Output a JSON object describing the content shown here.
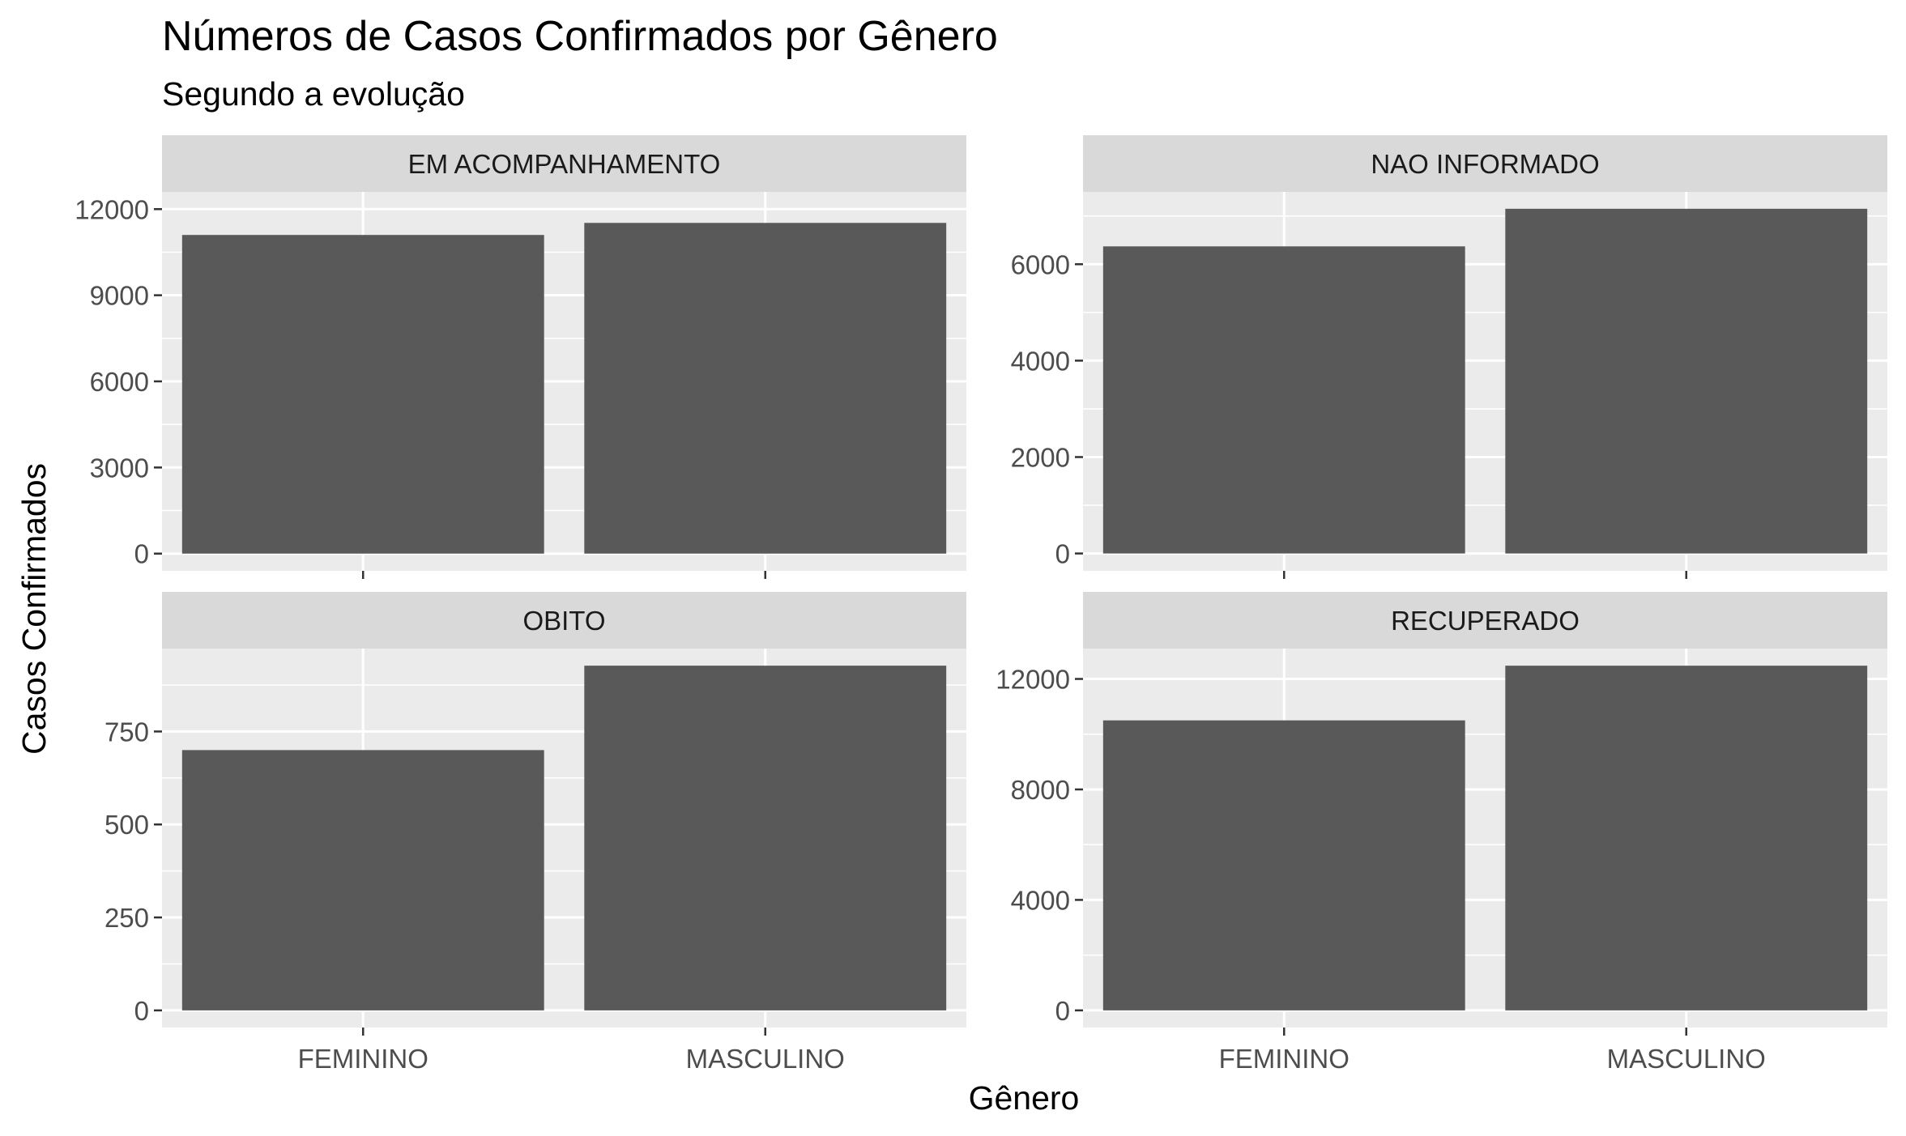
{
  "chart_data": {
    "type": "bar",
    "title": "Números de Casos Confirmados por Gênero",
    "subtitle": "Segundo a evolução",
    "xlabel": "Gênero",
    "ylabel": "Casos Confirmados",
    "categories": [
      "FEMININO",
      "MASCULINO"
    ],
    "bar_color": "#595959",
    "panel_background": "#ebebeb",
    "strip_background": "#d9d9d9",
    "grid": true,
    "facets": [
      {
        "label": "EM ACOMPANHAMENTO",
        "values": [
          11100,
          11520
        ],
        "ylim": [
          -600,
          12600
        ],
        "yticks": [
          0,
          3000,
          6000,
          9000,
          12000
        ],
        "ytick_labels": [
          "0",
          "3000",
          "6000",
          "9000",
          "12000"
        ]
      },
      {
        "label": "NAO INFORMADO",
        "values": [
          6370,
          7150
        ],
        "ylim": [
          -360,
          7500
        ],
        "yticks": [
          0,
          2000,
          4000,
          6000
        ],
        "ytick_labels": [
          "0",
          "2000",
          "4000",
          "6000"
        ]
      },
      {
        "label": "OBITO",
        "values": [
          700,
          927
        ],
        "ylim": [
          -46,
          973
        ],
        "yticks": [
          0,
          250,
          500,
          750
        ],
        "ytick_labels": [
          "0",
          "250",
          "500",
          "750"
        ]
      },
      {
        "label": "RECUPERADO",
        "values": [
          10500,
          12480
        ],
        "ylim": [
          -620,
          13100
        ],
        "yticks": [
          0,
          4000,
          8000,
          12000
        ],
        "ytick_labels": [
          "0",
          "4000",
          "8000",
          "12000"
        ]
      }
    ]
  }
}
